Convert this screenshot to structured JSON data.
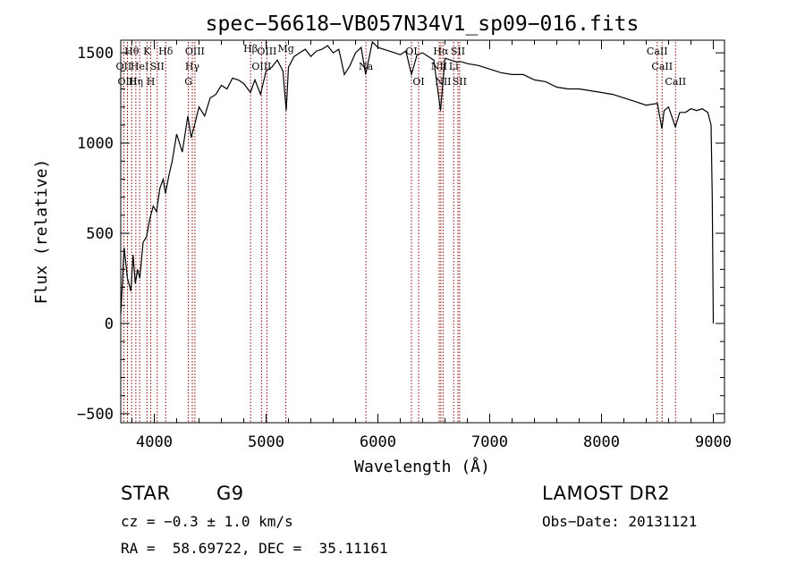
{
  "chart_data": {
    "type": "line",
    "title": "spec−56618−VB057N34V1_sp09−016.fits",
    "xlabel": "Wavelength (Å)",
    "ylabel": "Flux (relative)",
    "xlim": [
      3700,
      9100
    ],
    "ylim": [
      -550,
      1570
    ],
    "x_ticks": [
      4000,
      5000,
      6000,
      7000,
      8000,
      9000
    ],
    "y_ticks": [
      -500,
      0,
      500,
      1000,
      1500
    ],
    "grid": false,
    "line_color": "#000000",
    "marker_color": "#8b0000",
    "series": [
      {
        "x": [
          3700,
          3730,
          3760,
          3790,
          3810,
          3830,
          3850,
          3870,
          3900,
          3930,
          3960,
          3990,
          4020,
          4050,
          4080,
          4100,
          4130,
          4160,
          4200,
          4250,
          4300,
          4330,
          4360,
          4400,
          4450,
          4500,
          4550,
          4600,
          4650,
          4700,
          4750,
          4800,
          4860,
          4900,
          4950,
          5000,
          5050,
          5100,
          5150,
          5180,
          5200,
          5250,
          5300,
          5350,
          5400,
          5450,
          5500,
          5550,
          5600,
          5650,
          5700,
          5750,
          5800,
          5850,
          5890,
          5950,
          6000,
          6050,
          6100,
          6150,
          6200,
          6250,
          6300,
          6350,
          6400,
          6450,
          6500,
          6560,
          6600,
          6650,
          6700,
          6750,
          6800,
          6900,
          7000,
          7100,
          7200,
          7300,
          7400,
          7500,
          7600,
          7700,
          7800,
          7900,
          8000,
          8100,
          8200,
          8300,
          8400,
          8500,
          8540,
          8560,
          8600,
          8660,
          8700,
          8750,
          8800,
          8850,
          8900,
          8950,
          8980,
          8990,
          9000
        ],
        "y": [
          50,
          420,
          250,
          180,
          380,
          220,
          300,
          250,
          450,
          480,
          580,
          650,
          620,
          750,
          800,
          720,
          820,
          900,
          1050,
          950,
          1150,
          1030,
          1100,
          1200,
          1150,
          1250,
          1270,
          1320,
          1300,
          1360,
          1350,
          1330,
          1280,
          1350,
          1270,
          1400,
          1420,
          1460,
          1400,
          1180,
          1420,
          1480,
          1500,
          1520,
          1480,
          1510,
          1520,
          1540,
          1500,
          1520,
          1380,
          1430,
          1500,
          1530,
          1380,
          1560,
          1530,
          1520,
          1510,
          1500,
          1490,
          1510,
          1380,
          1490,
          1500,
          1480,
          1460,
          1180,
          1470,
          1460,
          1450,
          1450,
          1440,
          1430,
          1410,
          1390,
          1380,
          1380,
          1350,
          1340,
          1310,
          1300,
          1300,
          1290,
          1280,
          1270,
          1250,
          1230,
          1210,
          1220,
          1080,
          1180,
          1200,
          1090,
          1170,
          1170,
          1190,
          1180,
          1190,
          1170,
          1100,
          700,
          0
        ]
      }
    ],
    "line_markers": [
      {
        "x": 3727,
        "label": "OII",
        "row": 2
      },
      {
        "x": 3760,
        "label": "OIII",
        "row": 3
      },
      {
        "x": 3798,
        "label": "Hθ",
        "row": 1
      },
      {
        "x": 3835,
        "label": "Hη",
        "row": 3
      },
      {
        "x": 3869,
        "label": "HeI",
        "row": 2
      },
      {
        "x": 3934,
        "label": "K",
        "row": 1
      },
      {
        "x": 3968,
        "label": "H",
        "row": 3
      },
      {
        "x": 4026,
        "label": "SII",
        "row": 2
      },
      {
        "x": 4102,
        "label": "Hδ",
        "row": 1
      },
      {
        "x": 4305,
        "label": "G",
        "row": 3
      },
      {
        "x": 4340,
        "label": "Hγ",
        "row": 2
      },
      {
        "x": 4363,
        "label": "OIII",
        "row": 1
      },
      {
        "x": 4861,
        "label": "Hβ",
        "row": 0
      },
      {
        "x": 4959,
        "label": "OIII",
        "row": 2
      },
      {
        "x": 5007,
        "label": "OIII",
        "row": 1
      },
      {
        "x": 5177,
        "label": "Mg",
        "row": 0
      },
      {
        "x": 5893,
        "label": "Na",
        "row": 2
      },
      {
        "x": 6300,
        "label": "OI",
        "row": 1
      },
      {
        "x": 6364,
        "label": "OI",
        "row": 3
      },
      {
        "x": 6548,
        "label": "NII",
        "row": 2
      },
      {
        "x": 6563,
        "label": "Hα",
        "row": 1
      },
      {
        "x": 6583,
        "label": "NII",
        "row": 3
      },
      {
        "x": 6678,
        "label": "Li",
        "row": 2
      },
      {
        "x": 6716,
        "label": "SII",
        "row": 1
      },
      {
        "x": 6731,
        "label": "SII",
        "row": 3
      },
      {
        "x": 8498,
        "label": "CaII",
        "row": 1
      },
      {
        "x": 8542,
        "label": "CaII",
        "row": 2
      },
      {
        "x": 8662,
        "label": "CaII",
        "row": 3
      }
    ]
  },
  "info": {
    "object_class": "STAR",
    "subclass": "G9",
    "survey": "LAMOST DR2",
    "redshift": "cz = −0.3 ± 1.0 km/s",
    "obs_date": "Obs−Date: 20131121",
    "coords": "RA =  58.69722, DEC =  35.11161"
  }
}
